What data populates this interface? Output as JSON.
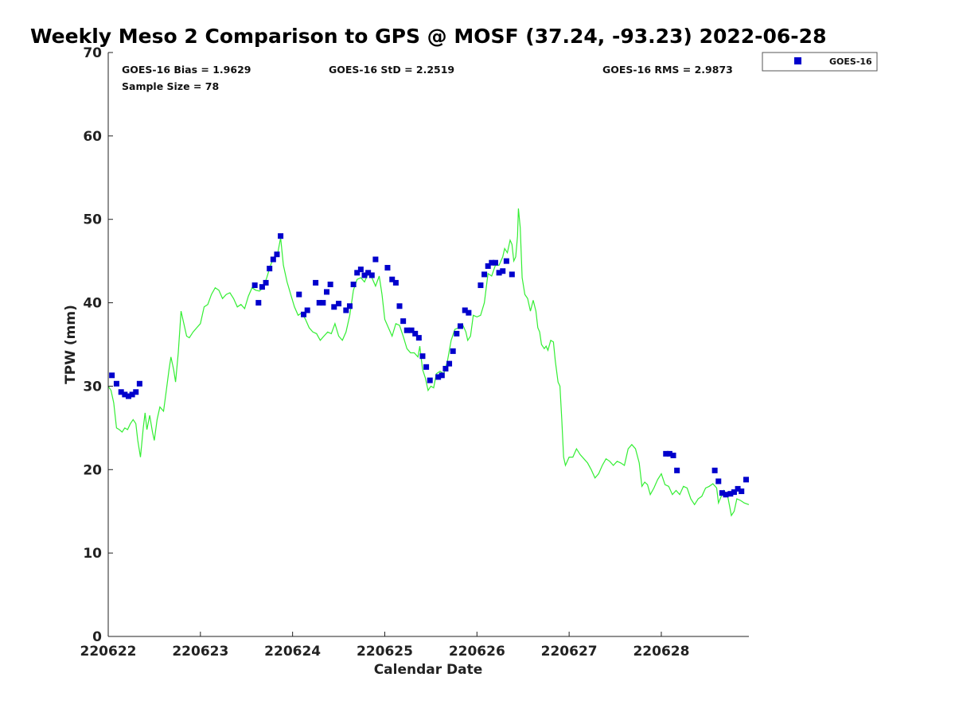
{
  "chart_data": {
    "type": "scatter",
    "title": "Weekly Meso 2 Comparison to GPS @ MOSF (37.24, -93.23) 2022-06-28",
    "xlabel": "Calendar Date",
    "ylabel": "TPW (mm)",
    "xlim": [
      0,
      6.95
    ],
    "ylim": [
      0,
      70
    ],
    "x_units": "days after 220622",
    "x_tick_values": [
      0,
      1,
      2,
      3,
      4,
      5,
      6
    ],
    "x_tick_labels": [
      "220622",
      "220623",
      "220624",
      "220625",
      "220626",
      "220627",
      "220628"
    ],
    "y_ticks": [
      0,
      10,
      20,
      30,
      40,
      50,
      60,
      70
    ],
    "grid": false,
    "legend_position": "top-right, outside plot",
    "stats": {
      "bias": "GOES-16 Bias = 1.9629",
      "std": "GOES-16 StD = 2.2519",
      "rms": "GOES-16 RMS = 2.9873",
      "sample": "Sample Size = 78"
    },
    "series": [
      {
        "name": "GOES-16",
        "kind": "scatter",
        "marker": "square",
        "color": "#0000cc",
        "points": [
          [
            0.04,
            31.3
          ],
          [
            0.09,
            30.3
          ],
          [
            0.14,
            29.3
          ],
          [
            0.18,
            29.0
          ],
          [
            0.22,
            28.8
          ],
          [
            0.26,
            29.0
          ],
          [
            0.3,
            29.3
          ],
          [
            0.34,
            30.3
          ],
          [
            1.59,
            42.1
          ],
          [
            1.63,
            40.0
          ],
          [
            1.67,
            41.9
          ],
          [
            1.71,
            42.4
          ],
          [
            1.75,
            44.1
          ],
          [
            1.79,
            45.2
          ],
          [
            1.83,
            45.8
          ],
          [
            1.87,
            48.0
          ],
          [
            2.07,
            41.0
          ],
          [
            2.12,
            38.6
          ],
          [
            2.16,
            39.1
          ],
          [
            2.25,
            42.4
          ],
          [
            2.29,
            40.0
          ],
          [
            2.33,
            40.0
          ],
          [
            2.37,
            41.3
          ],
          [
            2.41,
            42.2
          ],
          [
            2.45,
            39.5
          ],
          [
            2.5,
            39.9
          ],
          [
            2.58,
            39.1
          ],
          [
            2.62,
            39.6
          ],
          [
            2.66,
            42.2
          ],
          [
            2.7,
            43.6
          ],
          [
            2.74,
            44.0
          ],
          [
            2.78,
            43.3
          ],
          [
            2.82,
            43.6
          ],
          [
            2.86,
            43.3
          ],
          [
            2.9,
            45.2
          ],
          [
            3.03,
            44.2
          ],
          [
            3.08,
            42.8
          ],
          [
            3.12,
            42.4
          ],
          [
            3.16,
            39.6
          ],
          [
            3.2,
            37.8
          ],
          [
            3.24,
            36.7
          ],
          [
            3.29,
            36.7
          ],
          [
            3.33,
            36.3
          ],
          [
            3.37,
            35.8
          ],
          [
            3.41,
            33.6
          ],
          [
            3.45,
            32.3
          ],
          [
            3.49,
            30.7
          ],
          [
            3.58,
            31.1
          ],
          [
            3.62,
            31.3
          ],
          [
            3.66,
            32.1
          ],
          [
            3.7,
            32.7
          ],
          [
            3.74,
            34.2
          ],
          [
            3.78,
            36.3
          ],
          [
            3.82,
            37.2
          ],
          [
            3.87,
            39.1
          ],
          [
            3.91,
            38.8
          ],
          [
            4.04,
            42.1
          ],
          [
            4.08,
            43.4
          ],
          [
            4.12,
            44.4
          ],
          [
            4.16,
            44.8
          ],
          [
            4.2,
            44.8
          ],
          [
            4.24,
            43.6
          ],
          [
            4.28,
            43.8
          ],
          [
            4.32,
            45.0
          ],
          [
            4.38,
            43.4
          ],
          [
            6.05,
            21.9
          ],
          [
            6.09,
            21.9
          ],
          [
            6.13,
            21.7
          ],
          [
            6.17,
            19.9
          ],
          [
            6.58,
            19.9
          ],
          [
            6.62,
            18.6
          ],
          [
            6.66,
            17.2
          ],
          [
            6.7,
            17.0
          ],
          [
            6.75,
            17.1
          ],
          [
            6.79,
            17.3
          ],
          [
            6.83,
            17.7
          ],
          [
            6.87,
            17.4
          ],
          [
            6.92,
            18.8
          ]
        ]
      },
      {
        "name": "",
        "kind": "line",
        "color": "#33ee33",
        "points": [
          [
            0.0,
            30.0
          ],
          [
            0.03,
            29.5
          ],
          [
            0.06,
            28.0
          ],
          [
            0.09,
            25.0
          ],
          [
            0.12,
            24.8
          ],
          [
            0.15,
            24.5
          ],
          [
            0.18,
            25.0
          ],
          [
            0.21,
            24.8
          ],
          [
            0.24,
            25.5
          ],
          [
            0.27,
            26.0
          ],
          [
            0.3,
            25.5
          ],
          [
            0.32,
            23.5
          ],
          [
            0.35,
            21.5
          ],
          [
            0.38,
            25.0
          ],
          [
            0.4,
            26.8
          ],
          [
            0.42,
            24.8
          ],
          [
            0.45,
            26.5
          ],
          [
            0.48,
            24.5
          ],
          [
            0.5,
            23.5
          ],
          [
            0.53,
            26.0
          ],
          [
            0.56,
            27.5
          ],
          [
            0.6,
            27.0
          ],
          [
            0.63,
            29.5
          ],
          [
            0.66,
            32.0
          ],
          [
            0.68,
            33.5
          ],
          [
            0.71,
            32.0
          ],
          [
            0.73,
            30.5
          ],
          [
            0.76,
            34.0
          ],
          [
            0.79,
            39.0
          ],
          [
            0.82,
            37.5
          ],
          [
            0.85,
            36.0
          ],
          [
            0.88,
            35.8
          ],
          [
            0.92,
            36.5
          ],
          [
            0.96,
            37.0
          ],
          [
            1.0,
            37.5
          ],
          [
            1.04,
            39.5
          ],
          [
            1.08,
            39.8
          ],
          [
            1.12,
            41.0
          ],
          [
            1.16,
            41.8
          ],
          [
            1.2,
            41.5
          ],
          [
            1.24,
            40.5
          ],
          [
            1.28,
            41.0
          ],
          [
            1.32,
            41.2
          ],
          [
            1.36,
            40.5
          ],
          [
            1.4,
            39.5
          ],
          [
            1.44,
            39.8
          ],
          [
            1.48,
            39.3
          ],
          [
            1.52,
            40.8
          ],
          [
            1.56,
            41.8
          ],
          [
            1.6,
            41.5
          ],
          [
            1.64,
            41.4
          ],
          [
            1.68,
            41.8
          ],
          [
            1.72,
            43.0
          ],
          [
            1.76,
            44.5
          ],
          [
            1.8,
            45.5
          ],
          [
            1.84,
            46.0
          ],
          [
            1.87,
            47.8
          ],
          [
            1.9,
            44.5
          ],
          [
            1.94,
            42.5
          ],
          [
            1.98,
            41.0
          ],
          [
            2.02,
            39.5
          ],
          [
            2.06,
            38.5
          ],
          [
            2.1,
            38.8
          ],
          [
            2.14,
            38.0
          ],
          [
            2.18,
            37.0
          ],
          [
            2.22,
            36.5
          ],
          [
            2.26,
            36.3
          ],
          [
            2.3,
            35.5
          ],
          [
            2.34,
            36.0
          ],
          [
            2.38,
            36.5
          ],
          [
            2.42,
            36.3
          ],
          [
            2.46,
            37.5
          ],
          [
            2.5,
            36.0
          ],
          [
            2.54,
            35.5
          ],
          [
            2.58,
            36.5
          ],
          [
            2.62,
            38.5
          ],
          [
            2.66,
            41.5
          ],
          [
            2.7,
            42.8
          ],
          [
            2.74,
            43.0
          ],
          [
            2.78,
            42.5
          ],
          [
            2.82,
            43.5
          ],
          [
            2.86,
            43.0
          ],
          [
            2.9,
            42.0
          ],
          [
            2.94,
            43.2
          ],
          [
            2.97,
            41.0
          ],
          [
            3.0,
            38.0
          ],
          [
            3.04,
            37.0
          ],
          [
            3.08,
            36.0
          ],
          [
            3.12,
            37.5
          ],
          [
            3.16,
            37.3
          ],
          [
            3.2,
            36.0
          ],
          [
            3.24,
            34.5
          ],
          [
            3.28,
            34.0
          ],
          [
            3.32,
            34.0
          ],
          [
            3.36,
            33.5
          ],
          [
            3.38,
            34.8
          ],
          [
            3.41,
            32.0
          ],
          [
            3.44,
            31.0
          ],
          [
            3.47,
            29.5
          ],
          [
            3.5,
            30.0
          ],
          [
            3.53,
            29.8
          ],
          [
            3.56,
            31.5
          ],
          [
            3.6,
            31.8
          ],
          [
            3.64,
            31.5
          ],
          [
            3.68,
            33.0
          ],
          [
            3.72,
            35.5
          ],
          [
            3.76,
            36.8
          ],
          [
            3.8,
            37.0
          ],
          [
            3.84,
            37.5
          ],
          [
            3.88,
            36.5
          ],
          [
            3.9,
            35.5
          ],
          [
            3.93,
            36.0
          ],
          [
            3.96,
            38.5
          ],
          [
            4.0,
            38.3
          ],
          [
            4.04,
            38.5
          ],
          [
            4.08,
            40.0
          ],
          [
            4.12,
            43.5
          ],
          [
            4.16,
            43.2
          ],
          [
            4.2,
            44.5
          ],
          [
            4.24,
            44.5
          ],
          [
            4.28,
            45.5
          ],
          [
            4.3,
            46.5
          ],
          [
            4.33,
            46.0
          ],
          [
            4.36,
            47.5
          ],
          [
            4.38,
            47.0
          ],
          [
            4.4,
            45.0
          ],
          [
            4.42,
            45.5
          ],
          [
            4.44,
            48.0
          ],
          [
            4.45,
            51.3
          ],
          [
            4.47,
            49.0
          ],
          [
            4.49,
            43.0
          ],
          [
            4.52,
            41.0
          ],
          [
            4.55,
            40.5
          ],
          [
            4.58,
            39.0
          ],
          [
            4.61,
            40.3
          ],
          [
            4.64,
            39.0
          ],
          [
            4.66,
            37.0
          ],
          [
            4.68,
            36.5
          ],
          [
            4.7,
            35.0
          ],
          [
            4.73,
            34.5
          ],
          [
            4.75,
            34.8
          ],
          [
            4.77,
            34.3
          ],
          [
            4.8,
            35.5
          ],
          [
            4.83,
            35.3
          ],
          [
            4.85,
            33.0
          ],
          [
            4.88,
            30.5
          ],
          [
            4.9,
            30.0
          ],
          [
            4.92,
            26.0
          ],
          [
            4.94,
            21.5
          ],
          [
            4.96,
            20.5
          ],
          [
            5.0,
            21.5
          ],
          [
            5.04,
            21.5
          ],
          [
            5.08,
            22.5
          ],
          [
            5.12,
            21.8
          ],
          [
            5.16,
            21.3
          ],
          [
            5.2,
            20.8
          ],
          [
            5.24,
            20.0
          ],
          [
            5.28,
            19.0
          ],
          [
            5.32,
            19.5
          ],
          [
            5.36,
            20.5
          ],
          [
            5.4,
            21.3
          ],
          [
            5.44,
            21.0
          ],
          [
            5.48,
            20.5
          ],
          [
            5.52,
            21.0
          ],
          [
            5.56,
            20.8
          ],
          [
            5.6,
            20.5
          ],
          [
            5.64,
            22.5
          ],
          [
            5.68,
            23.0
          ],
          [
            5.72,
            22.5
          ],
          [
            5.76,
            20.8
          ],
          [
            5.79,
            18.0
          ],
          [
            5.82,
            18.5
          ],
          [
            5.85,
            18.2
          ],
          [
            5.88,
            17.0
          ],
          [
            5.92,
            17.8
          ],
          [
            5.96,
            18.8
          ],
          [
            6.0,
            19.5
          ],
          [
            6.04,
            18.2
          ],
          [
            6.08,
            18.0
          ],
          [
            6.12,
            17.0
          ],
          [
            6.16,
            17.5
          ],
          [
            6.2,
            17.0
          ],
          [
            6.24,
            18.0
          ],
          [
            6.28,
            17.8
          ],
          [
            6.32,
            16.5
          ],
          [
            6.36,
            15.8
          ],
          [
            6.4,
            16.5
          ],
          [
            6.44,
            16.8
          ],
          [
            6.48,
            17.8
          ],
          [
            6.52,
            18.0
          ],
          [
            6.56,
            18.3
          ],
          [
            6.6,
            17.8
          ],
          [
            6.62,
            16.0
          ],
          [
            6.65,
            16.8
          ],
          [
            6.68,
            17.5
          ],
          [
            6.72,
            16.8
          ],
          [
            6.76,
            14.5
          ],
          [
            6.79,
            15.0
          ],
          [
            6.82,
            16.5
          ],
          [
            6.86,
            16.3
          ],
          [
            6.9,
            16.0
          ],
          [
            6.95,
            15.8
          ]
        ]
      }
    ]
  }
}
